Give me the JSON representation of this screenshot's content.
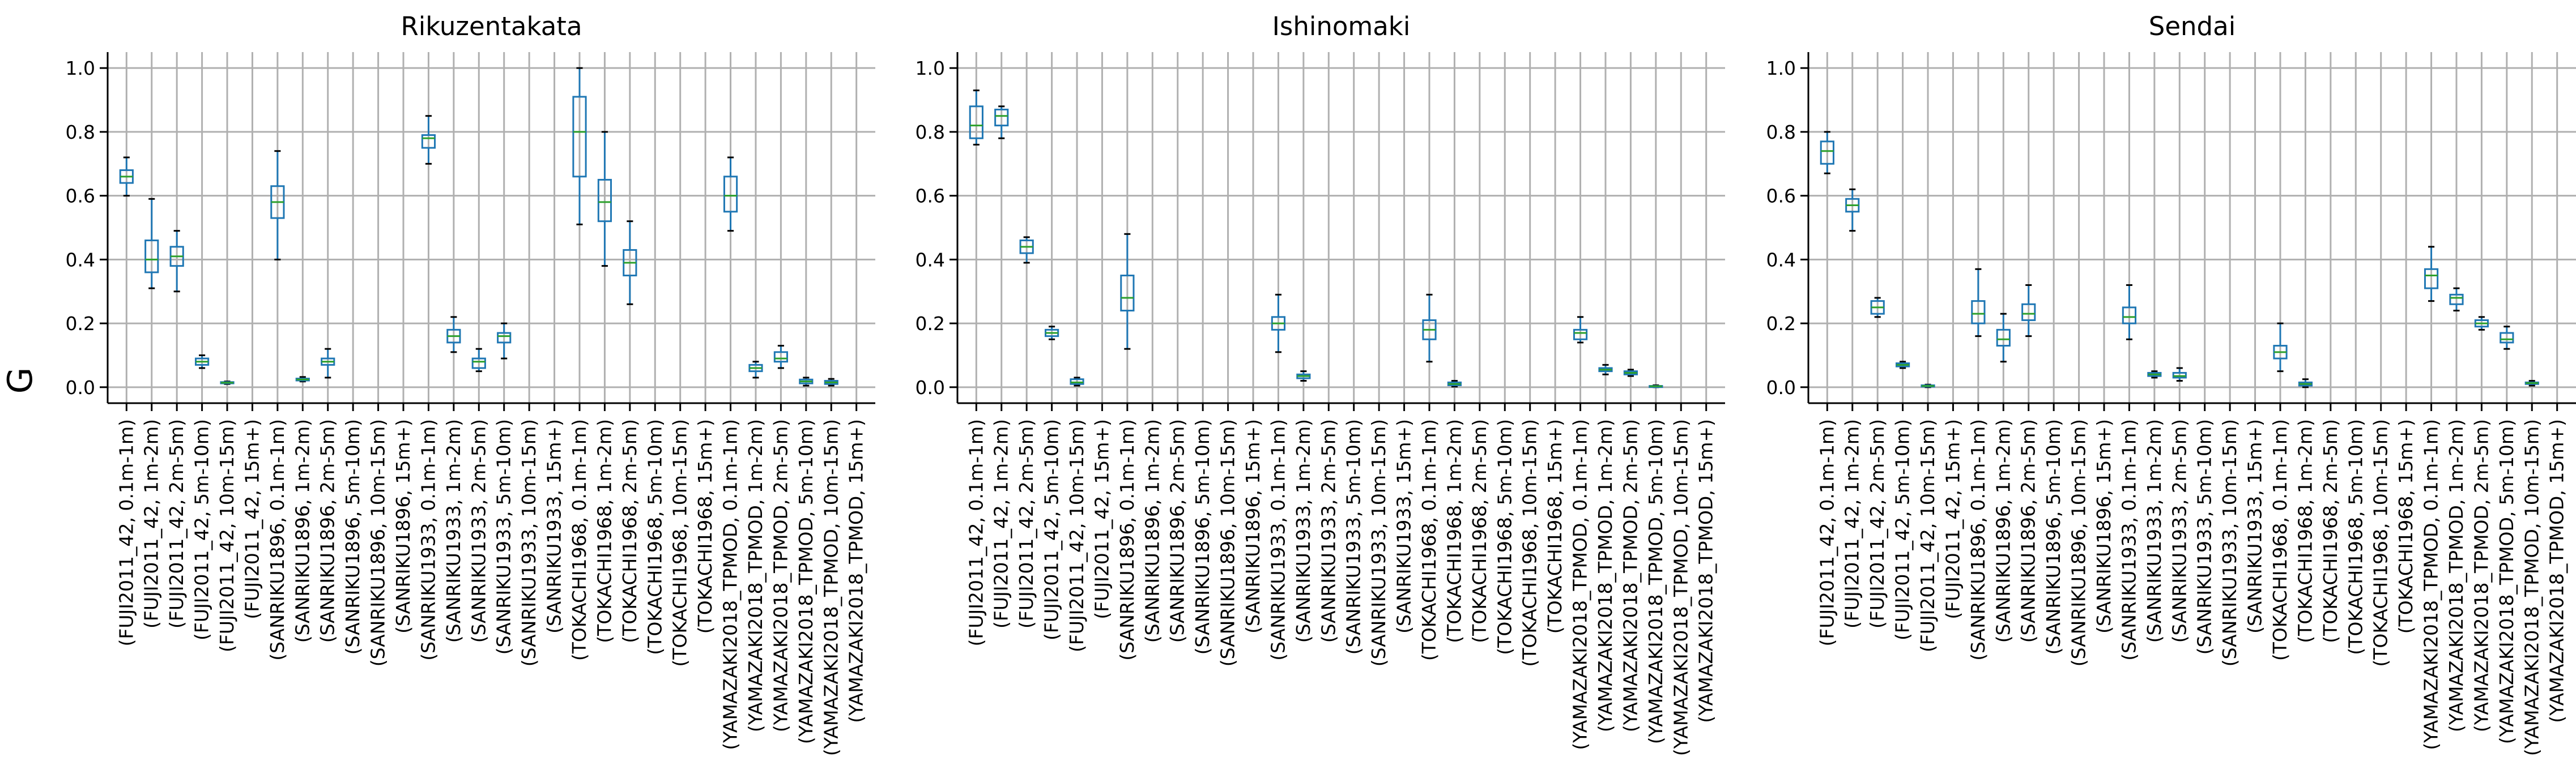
{
  "figure": {
    "ylabel": "G"
  },
  "colors": {
    "box": "#1f77b4",
    "median": "#2ca02c",
    "grid": "#b0b0b0",
    "axis": "#000000"
  },
  "chart_data": [
    {
      "type": "box",
      "title": "Rikuzentakata",
      "ylim": [
        -0.05,
        1.05
      ],
      "yticks": [
        0.0,
        0.2,
        0.4,
        0.6,
        0.8,
        1.0
      ],
      "ytick_labels": [
        "0.0",
        "0.2",
        "0.4",
        "0.6",
        "0.8",
        "1.0"
      ],
      "grid": true,
      "categories": [
        "(FUJI2011_42, 0.1m-1m)",
        "(FUJI2011_42, 1m-2m)",
        "(FUJI2011_42, 2m-5m)",
        "(FUJI2011_42, 5m-10m)",
        "(FUJI2011_42, 10m-15m)",
        "(FUJI2011_42, 15m+)",
        "(SANRIKU1896, 0.1m-1m)",
        "(SANRIKU1896, 1m-2m)",
        "(SANRIKU1896, 2m-5m)",
        "(SANRIKU1896, 5m-10m)",
        "(SANRIKU1896, 10m-15m)",
        "(SANRIKU1896, 15m+)",
        "(SANRIKU1933, 0.1m-1m)",
        "(SANRIKU1933, 1m-2m)",
        "(SANRIKU1933, 2m-5m)",
        "(SANRIKU1933, 5m-10m)",
        "(SANRIKU1933, 10m-15m)",
        "(SANRIKU1933, 15m+)",
        "(TOKACHI1968, 0.1m-1m)",
        "(TOKACHI1968, 1m-2m)",
        "(TOKACHI1968, 2m-5m)",
        "(TOKACHI1968, 5m-10m)",
        "(TOKACHI1968, 10m-15m)",
        "(TOKACHI1968, 15m+)",
        "(YAMAZAKI2018_TPMOD, 0.1m-1m)",
        "(YAMAZAKI2018_TPMOD, 1m-2m)",
        "(YAMAZAKI2018_TPMOD, 2m-5m)",
        "(YAMAZAKI2018_TPMOD, 5m-10m)",
        "(YAMAZAKI2018_TPMOD, 10m-15m)",
        "(YAMAZAKI2018_TPMOD, 15m+)"
      ],
      "boxes": [
        [
          0.6,
          0.64,
          0.66,
          0.68,
          0.72
        ],
        [
          0.31,
          0.36,
          0.4,
          0.46,
          0.59
        ],
        [
          0.3,
          0.38,
          0.41,
          0.44,
          0.49
        ],
        [
          0.06,
          0.07,
          0.08,
          0.09,
          0.1
        ],
        [
          0.01,
          0.012,
          0.014,
          0.016,
          0.018
        ],
        null,
        [
          0.4,
          0.53,
          0.58,
          0.63,
          0.74
        ],
        [
          0.018,
          0.021,
          0.024,
          0.027,
          0.032
        ],
        [
          0.03,
          0.07,
          0.08,
          0.09,
          0.12
        ],
        null,
        null,
        null,
        [
          0.7,
          0.75,
          0.78,
          0.79,
          0.85
        ],
        [
          0.11,
          0.14,
          0.16,
          0.18,
          0.22
        ],
        [
          0.05,
          0.06,
          0.08,
          0.09,
          0.12
        ],
        [
          0.09,
          0.14,
          0.16,
          0.17,
          0.2
        ],
        null,
        null,
        [
          0.51,
          0.66,
          0.8,
          0.91,
          1.0
        ],
        [
          0.38,
          0.52,
          0.58,
          0.65,
          0.8
        ],
        [
          0.26,
          0.35,
          0.39,
          0.43,
          0.52
        ],
        null,
        null,
        null,
        [
          0.49,
          0.55,
          0.6,
          0.66,
          0.72
        ],
        [
          0.03,
          0.05,
          0.06,
          0.07,
          0.08
        ],
        [
          0.06,
          0.08,
          0.09,
          0.11,
          0.13
        ],
        [
          0.005,
          0.012,
          0.018,
          0.024,
          0.03
        ],
        [
          0.005,
          0.01,
          0.015,
          0.02,
          0.026
        ],
        null
      ]
    },
    {
      "type": "box",
      "title": "Ishinomaki",
      "ylim": [
        -0.05,
        1.05
      ],
      "yticks": [
        0.0,
        0.2,
        0.4,
        0.6,
        0.8,
        1.0
      ],
      "ytick_labels": [
        "0.0",
        "0.2",
        "0.4",
        "0.6",
        "0.8",
        "1.0"
      ],
      "grid": true,
      "categories": [
        "(FUJI2011_42, 0.1m-1m)",
        "(FUJI2011_42, 1m-2m)",
        "(FUJI2011_42, 2m-5m)",
        "(FUJI2011_42, 5m-10m)",
        "(FUJI2011_42, 10m-15m)",
        "(FUJI2011_42, 15m+)",
        "(SANRIKU1896, 0.1m-1m)",
        "(SANRIKU1896, 1m-2m)",
        "(SANRIKU1896, 2m-5m)",
        "(SANRIKU1896, 5m-10m)",
        "(SANRIKU1896, 10m-15m)",
        "(SANRIKU1896, 15m+)",
        "(SANRIKU1933, 0.1m-1m)",
        "(SANRIKU1933, 1m-2m)",
        "(SANRIKU1933, 2m-5m)",
        "(SANRIKU1933, 5m-10m)",
        "(SANRIKU1933, 10m-15m)",
        "(SANRIKU1933, 15m+)",
        "(TOKACHI1968, 0.1m-1m)",
        "(TOKACHI1968, 1m-2m)",
        "(TOKACHI1968, 2m-5m)",
        "(TOKACHI1968, 5m-10m)",
        "(TOKACHI1968, 10m-15m)",
        "(TOKACHI1968, 15m+)",
        "(YAMAZAKI2018_TPMOD, 0.1m-1m)",
        "(YAMAZAKI2018_TPMOD, 1m-2m)",
        "(YAMAZAKI2018_TPMOD, 2m-5m)",
        "(YAMAZAKI2018_TPMOD, 5m-10m)",
        "(YAMAZAKI2018_TPMOD, 10m-15m)",
        "(YAMAZAKI2018_TPMOD, 15m+)"
      ],
      "boxes": [
        [
          0.76,
          0.78,
          0.82,
          0.88,
          0.93
        ],
        [
          0.78,
          0.82,
          0.85,
          0.87,
          0.88
        ],
        [
          0.39,
          0.42,
          0.44,
          0.46,
          0.47
        ],
        [
          0.15,
          0.16,
          0.17,
          0.18,
          0.19
        ],
        [
          0.005,
          0.01,
          0.015,
          0.025,
          0.03
        ],
        null,
        [
          0.12,
          0.24,
          0.28,
          0.35,
          0.48
        ],
        null,
        null,
        null,
        null,
        null,
        [
          0.11,
          0.18,
          0.2,
          0.22,
          0.29
        ],
        [
          0.02,
          0.028,
          0.035,
          0.04,
          0.05
        ],
        null,
        null,
        null,
        null,
        [
          0.08,
          0.15,
          0.18,
          0.21,
          0.29
        ],
        [
          0.002,
          0.006,
          0.01,
          0.015,
          0.02
        ],
        null,
        null,
        null,
        null,
        [
          0.14,
          0.15,
          0.17,
          0.18,
          0.22
        ],
        [
          0.04,
          0.05,
          0.055,
          0.06,
          0.07
        ],
        [
          0.035,
          0.04,
          0.045,
          0.05,
          0.055
        ],
        [
          0.0,
          0.002,
          0.003,
          0.004,
          0.006
        ],
        null,
        null
      ]
    },
    {
      "type": "box",
      "title": "Sendai",
      "ylim": [
        -0.05,
        1.05
      ],
      "yticks": [
        0.0,
        0.2,
        0.4,
        0.6,
        0.8,
        1.0
      ],
      "ytick_labels": [
        "0.0",
        "0.2",
        "0.4",
        "0.6",
        "0.8",
        "1.0"
      ],
      "grid": true,
      "categories": [
        "(FUJI2011_42, 0.1m-1m)",
        "(FUJI2011_42, 1m-2m)",
        "(FUJI2011_42, 2m-5m)",
        "(FUJI2011_42, 5m-10m)",
        "(FUJI2011_42, 10m-15m)",
        "(FUJI2011_42, 15m+)",
        "(SANRIKU1896, 0.1m-1m)",
        "(SANRIKU1896, 1m-2m)",
        "(SANRIKU1896, 2m-5m)",
        "(SANRIKU1896, 5m-10m)",
        "(SANRIKU1896, 10m-15m)",
        "(SANRIKU1896, 15m+)",
        "(SANRIKU1933, 0.1m-1m)",
        "(SANRIKU1933, 1m-2m)",
        "(SANRIKU1933, 2m-5m)",
        "(SANRIKU1933, 5m-10m)",
        "(SANRIKU1933, 10m-15m)",
        "(SANRIKU1933, 15m+)",
        "(TOKACHI1968, 0.1m-1m)",
        "(TOKACHI1968, 1m-2m)",
        "(TOKACHI1968, 2m-5m)",
        "(TOKACHI1968, 5m-10m)",
        "(TOKACHI1968, 10m-15m)",
        "(TOKACHI1968, 15m+)",
        "(YAMAZAKI2018_TPMOD, 0.1m-1m)",
        "(YAMAZAKI2018_TPMOD, 1m-2m)",
        "(YAMAZAKI2018_TPMOD, 2m-5m)",
        "(YAMAZAKI2018_TPMOD, 5m-10m)",
        "(YAMAZAKI2018_TPMOD, 10m-15m)",
        "(YAMAZAKI2018_TPMOD, 15m+)"
      ],
      "boxes": [
        [
          0.67,
          0.7,
          0.74,
          0.77,
          0.8
        ],
        [
          0.49,
          0.55,
          0.57,
          0.59,
          0.62
        ],
        [
          0.22,
          0.23,
          0.25,
          0.27,
          0.28
        ],
        [
          0.06,
          0.065,
          0.07,
          0.075,
          0.08
        ],
        [
          0.0,
          0.002,
          0.004,
          0.006,
          0.008
        ],
        null,
        [
          0.16,
          0.2,
          0.23,
          0.27,
          0.37
        ],
        [
          0.08,
          0.13,
          0.15,
          0.18,
          0.23
        ],
        [
          0.16,
          0.21,
          0.23,
          0.26,
          0.32
        ],
        null,
        null,
        null,
        [
          0.15,
          0.2,
          0.22,
          0.25,
          0.32
        ],
        [
          0.03,
          0.035,
          0.04,
          0.045,
          0.05
        ],
        [
          0.02,
          0.03,
          0.035,
          0.045,
          0.06
        ],
        null,
        null,
        null,
        [
          0.05,
          0.09,
          0.11,
          0.13,
          0.2
        ],
        [
          0.0,
          0.005,
          0.01,
          0.015,
          0.025
        ],
        null,
        null,
        null,
        null,
        [
          0.27,
          0.31,
          0.35,
          0.37,
          0.44
        ],
        [
          0.24,
          0.26,
          0.28,
          0.29,
          0.31
        ],
        [
          0.18,
          0.19,
          0.2,
          0.21,
          0.22
        ],
        [
          0.12,
          0.14,
          0.15,
          0.17,
          0.19
        ],
        [
          0.005,
          0.01,
          0.013,
          0.015,
          0.02
        ],
        null
      ]
    }
  ]
}
